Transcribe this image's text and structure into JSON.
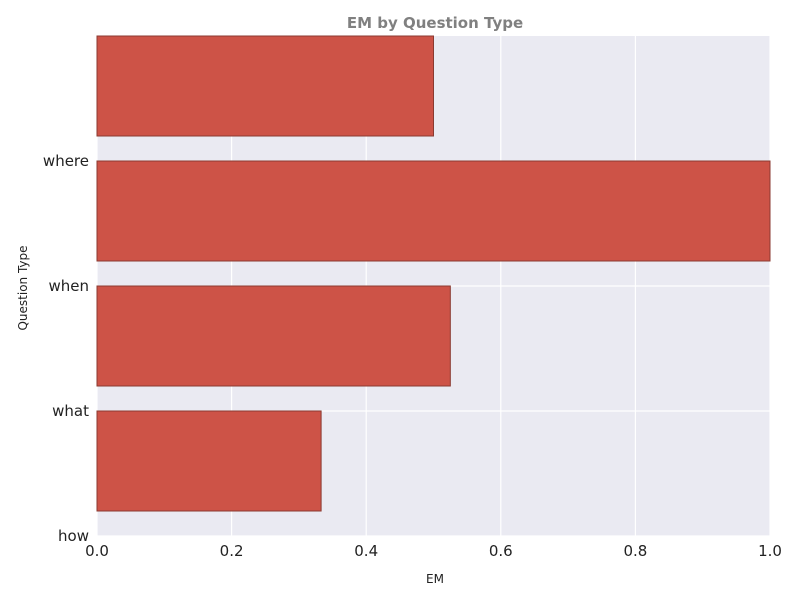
{
  "chart_data": {
    "type": "bar",
    "orientation": "horizontal",
    "title": "EM by Question Type",
    "xlabel": "EM",
    "ylabel": "Question Type",
    "categories": [
      "how",
      "what",
      "when",
      "where"
    ],
    "values": [
      0.333,
      0.525,
      1.0,
      0.5
    ],
    "xlim": [
      0.0,
      1.0
    ],
    "xticks": [
      "0.0",
      "0.2",
      "0.4",
      "0.6",
      "0.8",
      "1.0"
    ],
    "grid": true,
    "bar_color": "#cd5347",
    "background_color": "#eaeaf2"
  }
}
